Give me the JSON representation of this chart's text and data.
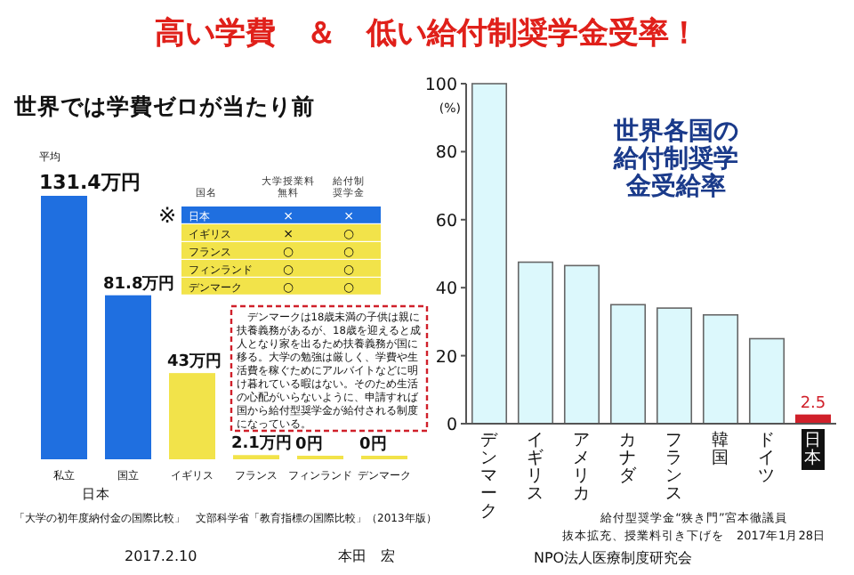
{
  "chart_data": [
    {
      "type": "bar",
      "title": "高い学費　＆　低い給付制奨学金受率！",
      "subtitle": "世界では学費ゼロが当たり前",
      "categories": [
        "私立",
        "国立",
        "イギリス",
        "フランス",
        "フィンランド",
        "デンマーク"
      ],
      "values": [
        131.4,
        81.8,
        43,
        2.1,
        0,
        0
      ],
      "colors": [
        "#1f6fe0",
        "#1f6fe0",
        "#f2e34a",
        "#f2e34a",
        "#f2e34a",
        "#f2e34a"
      ],
      "value_labels": [
        "131.4万円",
        "81.8万円",
        "43万円",
        "2.1万円",
        "0円",
        "0円"
      ],
      "annotations": [
        "平均",
        "日本",
        "デンマークは18歳未満の子供は親に扶養義務があるが、18歳を迎えると成人となり家を出るため扶養義務が国に移る。大学の勉強は厳しく、学費や生活費を稼ぐためにアルバイトなどに明け暮れている暇はない。そのため生活の心配がいらないように、申請すれば国から給付型奨学金が給付される制度になっている。",
        "「大学の初年度納付金の国際比較」　文部科学省「教育指標の国際比較」（2013年版）",
        "2017.2.10",
        "本田　宏"
      ]
    },
    {
      "type": "other",
      "colors": [
        "#1f6fe0",
        "#f2e34a",
        "#f2e34a",
        "#f2e34a",
        "#f2e34a"
      ],
      "annotations": [
        "※",
        "国名",
        "大学授業料無料",
        "給付制奨学金",
        "日本",
        "×",
        "×",
        "イギリス",
        "×",
        "○",
        "フランス",
        "○",
        "○",
        "フィンランド",
        "○",
        "○",
        "デンマーク",
        "○",
        "○"
      ]
    },
    {
      "type": "bar",
      "title": "世界各国の給付制奨学金受給率",
      "ylabel": "(%)",
      "categories": [
        "デンマーク",
        "イギリス",
        "アメリカ",
        "カナダ",
        "フランス",
        "韓国",
        "ドイツ",
        "日本"
      ],
      "values": [
        100,
        47.5,
        46.5,
        35,
        34,
        32,
        25,
        2.5
      ],
      "colors": [
        "#dcf8fc",
        "#dcf8fc",
        "#dcf8fc",
        "#dcf8fc",
        "#dcf8fc",
        "#dcf8fc",
        "#dcf8fc",
        "#d0202a"
      ],
      "value_labels": [
        null,
        null,
        null,
        null,
        null,
        null,
        null,
        "2.5"
      ],
      "ylim": [
        0,
        100
      ],
      "yticks": [
        0,
        20,
        40,
        60,
        80,
        100
      ],
      "grid": false,
      "annotations": [
        "給付型奨学金“狭き門”宮本徹議員",
        "抜本拡充、授業料引き下げを　2017年1月28日",
        "NPO法人医療制度研究会"
      ]
    }
  ]
}
